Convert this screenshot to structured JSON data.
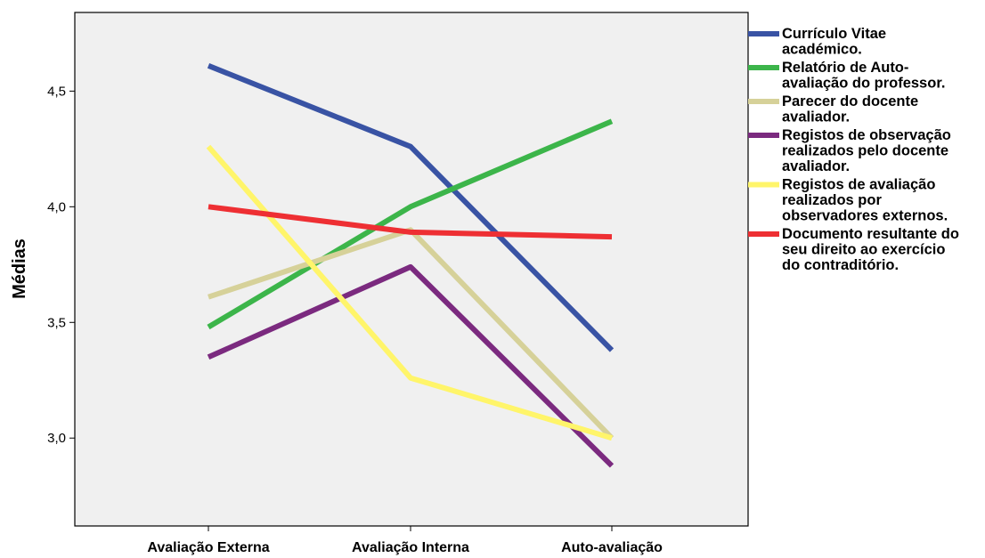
{
  "chart_data": {
    "type": "line",
    "title": "",
    "xlabel": "",
    "ylabel": "Médias",
    "categories": [
      "Avaliação Externa",
      "Avaliação Interna",
      "Auto-avaliação"
    ],
    "ylim": [
      2.62,
      4.84
    ],
    "yticks": [
      3.0,
      3.5,
      4.0,
      4.5
    ],
    "ytick_labels": [
      "3,0",
      "3,5",
      "4,0",
      "4,5"
    ],
    "grid": false,
    "legend_position": "right",
    "series": [
      {
        "name": "Currículo Vitae académico.",
        "legend_lines": [
          "Currículo Vitae",
          "académico."
        ],
        "color": "#3953a4",
        "values": [
          4.61,
          4.26,
          3.38
        ]
      },
      {
        "name": "Relatório de Auto-avaliação do professor.",
        "legend_lines": [
          "Relatório de Auto-",
          "avaliação do professor."
        ],
        "color": "#3cb54a",
        "values": [
          3.48,
          4.0,
          4.37
        ]
      },
      {
        "name": "Parecer do docente avaliador.",
        "legend_lines": [
          "Parecer do docente",
          "avaliador."
        ],
        "color": "#d6d199",
        "values": [
          3.61,
          3.9,
          3.0
        ]
      },
      {
        "name": "Registos de observação realizados pelo docente avaliador.",
        "legend_lines": [
          "Registos de observação",
          "realizados pelo docente",
          "avaliador."
        ],
        "color": "#7b2a7f",
        "values": [
          3.35,
          3.74,
          2.88
        ]
      },
      {
        "name": "Registos de avaliação realizados por observadores externos.",
        "legend_lines": [
          "Registos de avaliação",
          "realizados por",
          "observadores externos."
        ],
        "color": "#fff56a",
        "values": [
          4.26,
          3.26,
          3.0
        ]
      },
      {
        "name": "Documento resultante do seu direito ao exercício do contraditório.",
        "legend_lines": [
          "Documento resultante do",
          "seu direito ao exercício",
          "do contraditório."
        ],
        "color": "#ee2f33",
        "values": [
          4.0,
          3.89,
          3.87
        ]
      }
    ]
  }
}
